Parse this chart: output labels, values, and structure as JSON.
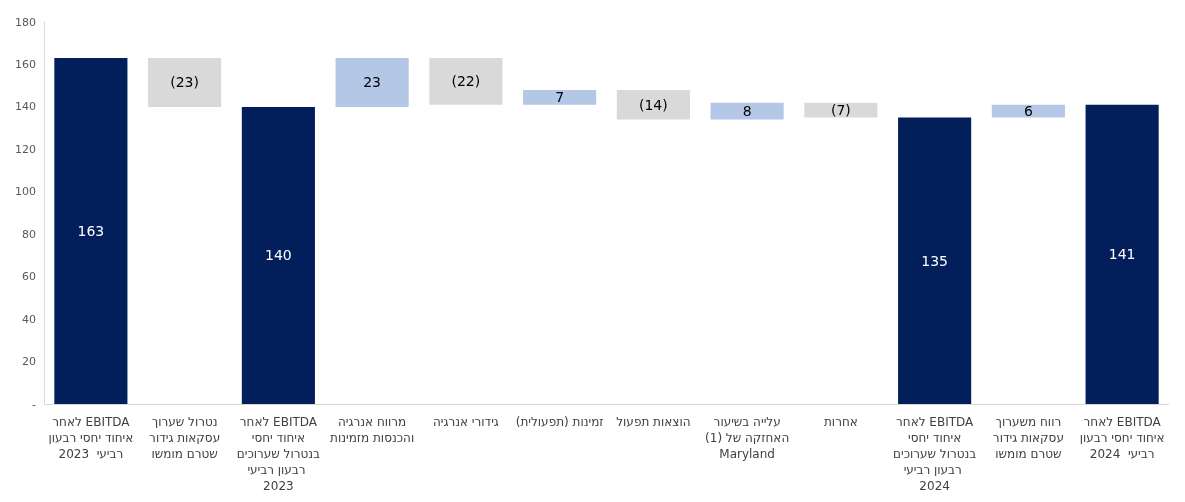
{
  "chart_data": {
    "type": "bar",
    "categories": [
      "EBITDA לאחר איחוד יחסי רבעון רביעי  2023",
      "נטרול שערוך עסקאות גידור שטרם מומשו",
      "EBITDA לאחר איחוד יחסי בנטרול שערוכים רבעון רביעי  2023",
      "מרווח אנרגיה והכנסות מזמינות",
      "גידורי אנרגיה",
      "זמינות (תפעולית)",
      "הוצאות תפעול",
      "עלייה בשיעור האחזקה של (1) Maryland",
      "אחרות",
      "EBITDA לאחר איחוד יחסי בנטרול שערוכים רבעון רביעי  2024",
      "רווח משערוך עסקאות גידור שטרם מומשו",
      "EBITDA לאחר איחוד יחסי רבעון רביעי  2024"
    ],
    "values": [
      163,
      -23,
      140,
      23,
      -22,
      7,
      -14,
      8,
      -7,
      135,
      6,
      141
    ],
    "base": [
      0,
      163,
      0,
      140,
      163,
      141,
      148,
      134,
      142,
      0,
      135,
      0
    ],
    "colors": [
      "#021f5c",
      "#d9d9d9",
      "#021f5c",
      "#b4c7e7",
      "#d9d9d9",
      "#b4c7e7",
      "#d9d9d9",
      "#b4c7e7",
      "#d9d9d9",
      "#021f5c",
      "#b4c7e7",
      "#021f5c"
    ],
    "value_labels": [
      "163",
      "(23)",
      "140",
      "23",
      "(22)",
      "7",
      "(14)",
      "8",
      "(7)",
      "135",
      "6",
      "141"
    ],
    "ylim": [
      0,
      180
    ],
    "yticks": [
      {
        "value": 0,
        "label": "-"
      },
      20,
      40,
      60,
      80,
      100,
      120,
      140,
      160,
      180
    ],
    "grid": false
  }
}
